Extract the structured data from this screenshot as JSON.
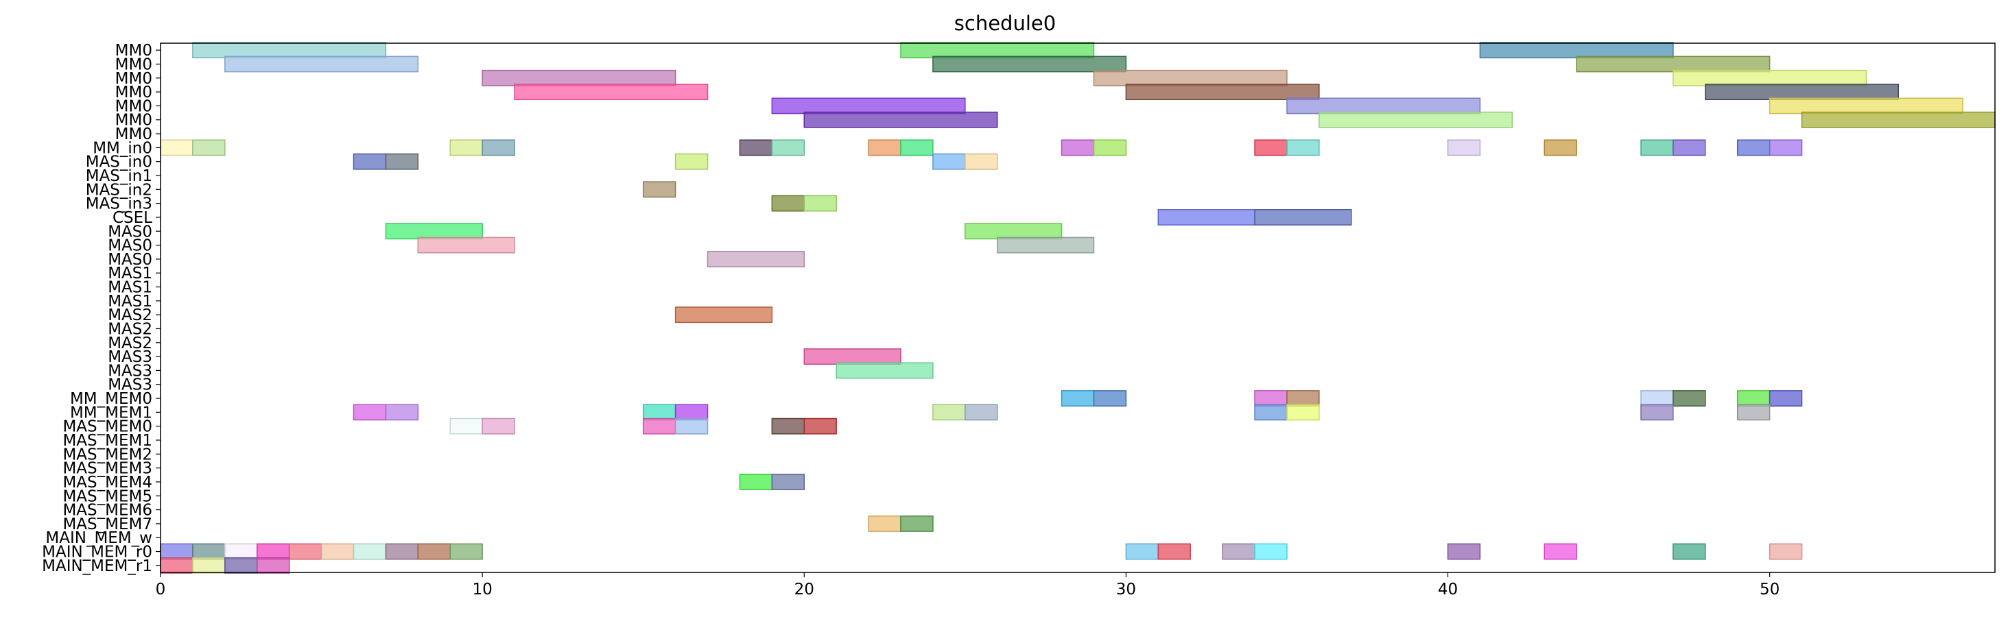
{
  "chart_data": {
    "type": "gantt",
    "title": "schedule0",
    "xlim": [
      0,
      57
    ],
    "xticks": [
      0,
      10,
      20,
      30,
      40,
      50
    ],
    "xlabel": "",
    "ylabel": "",
    "grid": false,
    "rows": [
      "MM0",
      "MM0",
      "MM0",
      "MM0",
      "MM0",
      "MM0",
      "MM0",
      "MM_in0",
      "MAS_in0",
      "MAS_in1",
      "MAS_in2",
      "MAS_in3",
      "CSEL",
      "MAS0",
      "MAS0",
      "MAS0",
      "MAS1",
      "MAS1",
      "MAS1",
      "MAS2",
      "MAS2",
      "MAS2",
      "MAS3",
      "MAS3",
      "MAS3",
      "MM_MEM0",
      "MM_MEM1",
      "MAS_MEM0",
      "MAS_MEM1",
      "MAS_MEM2",
      "MAS_MEM3",
      "MAS_MEM4",
      "MAS_MEM5",
      "MAS_MEM6",
      "MAS_MEM7",
      "MAIN_MEM_w",
      "MAIN_MEM_r0",
      "MAIN_MEM_r1"
    ],
    "bars": [
      {
        "row": 0,
        "start": 1,
        "end": 7,
        "color": "#8fd1d1"
      },
      {
        "row": 0,
        "start": 23,
        "end": 29,
        "color": "#5ce05c"
      },
      {
        "row": 0,
        "start": 41,
        "end": 47,
        "color": "#4a8fb5"
      },
      {
        "row": 1,
        "start": 2,
        "end": 8,
        "color": "#9fbfe6"
      },
      {
        "row": 1,
        "start": 24,
        "end": 30,
        "color": "#3d7a55"
      },
      {
        "row": 1,
        "start": 44,
        "end": 50,
        "color": "#8fa850"
      },
      {
        "row": 2,
        "start": 10,
        "end": 16,
        "color": "#c07ab8"
      },
      {
        "row": 2,
        "start": 29,
        "end": 35,
        "color": "#c9a086"
      },
      {
        "row": 2,
        "start": 47,
        "end": 53,
        "color": "#e0f57a"
      },
      {
        "row": 3,
        "start": 11,
        "end": 17,
        "color": "#ff5aa5"
      },
      {
        "row": 3,
        "start": 30,
        "end": 36,
        "color": "#8b5540"
      },
      {
        "row": 3,
        "start": 48,
        "end": 54,
        "color": "#4a5566"
      },
      {
        "row": 4,
        "start": 19,
        "end": 25,
        "color": "#8a3ee8"
      },
      {
        "row": 4,
        "start": 35,
        "end": 41,
        "color": "#8f8fe0"
      },
      {
        "row": 4,
        "start": 50,
        "end": 56,
        "color": "#ede060"
      },
      {
        "row": 5,
        "start": 20,
        "end": 26,
        "color": "#6a35b5"
      },
      {
        "row": 5,
        "start": 36,
        "end": 42,
        "color": "#b0f08f"
      },
      {
        "row": 5,
        "start": 51,
        "end": 57,
        "color": "#a8b035"
      },
      {
        "row": 7,
        "start": 0,
        "end": 1,
        "color": "#fff5b5"
      },
      {
        "row": 7,
        "start": 1,
        "end": 2,
        "color": "#b5e09a"
      },
      {
        "row": 7,
        "start": 9,
        "end": 10,
        "color": "#d8ee8a"
      },
      {
        "row": 7,
        "start": 10,
        "end": 11,
        "color": "#7aa5b8"
      },
      {
        "row": 7,
        "start": 18,
        "end": 19,
        "color": "#5a4565"
      },
      {
        "row": 7,
        "start": 19,
        "end": 20,
        "color": "#7ad8b0"
      },
      {
        "row": 7,
        "start": 22,
        "end": 23,
        "color": "#ee9a60"
      },
      {
        "row": 7,
        "start": 23,
        "end": 24,
        "color": "#3ae87a"
      },
      {
        "row": 7,
        "start": 28,
        "end": 29,
        "color": "#c860d8"
      },
      {
        "row": 7,
        "start": 29,
        "end": 30,
        "color": "#a0e855"
      },
      {
        "row": 7,
        "start": 34,
        "end": 35,
        "color": "#f0405a"
      },
      {
        "row": 7,
        "start": 35,
        "end": 36,
        "color": "#6ed8d0"
      },
      {
        "row": 7,
        "start": 40,
        "end": 41,
        "color": "#d8c8ee"
      },
      {
        "row": 7,
        "start": 43,
        "end": 44,
        "color": "#c89a40"
      },
      {
        "row": 7,
        "start": 46,
        "end": 47,
        "color": "#55c8a0"
      },
      {
        "row": 7,
        "start": 47,
        "end": 48,
        "color": "#7a60d8"
      },
      {
        "row": 7,
        "start": 49,
        "end": 50,
        "color": "#6070d8"
      },
      {
        "row": 7,
        "start": 50,
        "end": 51,
        "color": "#a070f0"
      },
      {
        "row": 8,
        "start": 6,
        "end": 7,
        "color": "#5a6ec0"
      },
      {
        "row": 8,
        "start": 7,
        "end": 8,
        "color": "#667580"
      },
      {
        "row": 8,
        "start": 16,
        "end": 17,
        "color": "#c8ee75"
      },
      {
        "row": 8,
        "start": 24,
        "end": 25,
        "color": "#75b5f5"
      },
      {
        "row": 8,
        "start": 25,
        "end": 26,
        "color": "#fad8a0"
      },
      {
        "row": 10,
        "start": 15,
        "end": 16,
        "color": "#a89068"
      },
      {
        "row": 11,
        "start": 19,
        "end": 20,
        "color": "#7a8a35"
      },
      {
        "row": 11,
        "start": 20,
        "end": 21,
        "color": "#a8e870"
      },
      {
        "row": 12,
        "start": 31,
        "end": 34,
        "color": "#6e7af0"
      },
      {
        "row": 12,
        "start": 34,
        "end": 37,
        "color": "#5a6ec0"
      },
      {
        "row": 13,
        "start": 7,
        "end": 10,
        "color": "#40f070"
      },
      {
        "row": 13,
        "start": 25,
        "end": 28,
        "color": "#7ae85a"
      },
      {
        "row": 14,
        "start": 8,
        "end": 11,
        "color": "#f0a5b5"
      },
      {
        "row": 14,
        "start": 26,
        "end": 29,
        "color": "#a5b8b0"
      },
      {
        "row": 15,
        "start": 17,
        "end": 20,
        "color": "#c8a5c0"
      },
      {
        "row": 19,
        "start": 16,
        "end": 19,
        "color": "#d0704a"
      },
      {
        "row": 22,
        "start": 20,
        "end": 23,
        "color": "#e85aa5"
      },
      {
        "row": 23,
        "start": 21,
        "end": 24,
        "color": "#7ae8a8"
      },
      {
        "row": 25,
        "start": 28,
        "end": 29,
        "color": "#3ab0e8"
      },
      {
        "row": 25,
        "start": 29,
        "end": 30,
        "color": "#4a80c8"
      },
      {
        "row": 25,
        "start": 34,
        "end": 35,
        "color": "#d860d8"
      },
      {
        "row": 25,
        "start": 35,
        "end": 36,
        "color": "#b07a55"
      },
      {
        "row": 25,
        "start": 46,
        "end": 47,
        "color": "#b8d0f5"
      },
      {
        "row": 25,
        "start": 47,
        "end": 48,
        "color": "#4a6e40"
      },
      {
        "row": 25,
        "start": 49,
        "end": 50,
        "color": "#5ae840"
      },
      {
        "row": 25,
        "start": 50,
        "end": 51,
        "color": "#5a5ad0"
      },
      {
        "row": 26,
        "start": 6,
        "end": 7,
        "color": "#d860e8"
      },
      {
        "row": 26,
        "start": 7,
        "end": 8,
        "color": "#b880e8"
      },
      {
        "row": 26,
        "start": 15,
        "end": 16,
        "color": "#40e0c0"
      },
      {
        "row": 26,
        "start": 16,
        "end": 17,
        "color": "#b040f0"
      },
      {
        "row": 26,
        "start": 24,
        "end": 25,
        "color": "#c0e890"
      },
      {
        "row": 26,
        "start": 25,
        "end": 26,
        "color": "#a0b0c5"
      },
      {
        "row": 26,
        "start": 34,
        "end": 35,
        "color": "#6a9ae0"
      },
      {
        "row": 26,
        "start": 35,
        "end": 36,
        "color": "#e8ff70"
      },
      {
        "row": 26,
        "start": 46,
        "end": 47,
        "color": "#9080c0"
      },
      {
        "row": 26,
        "start": 49,
        "end": 50,
        "color": "#a5a8b0"
      },
      {
        "row": 27,
        "start": 9,
        "end": 10,
        "color": "#eefafa"
      },
      {
        "row": 27,
        "start": 10,
        "end": 11,
        "color": "#e8a5d0"
      },
      {
        "row": 27,
        "start": 15,
        "end": 16,
        "color": "#f060c0"
      },
      {
        "row": 27,
        "start": 16,
        "end": 17,
        "color": "#a0c0f0"
      },
      {
        "row": 27,
        "start": 19,
        "end": 20,
        "color": "#6a4a45"
      },
      {
        "row": 27,
        "start": 20,
        "end": 21,
        "color": "#c03535"
      },
      {
        "row": 31,
        "start": 18,
        "end": 19,
        "color": "#40f040"
      },
      {
        "row": 31,
        "start": 19,
        "end": 20,
        "color": "#6a78a8"
      },
      {
        "row": 34,
        "start": 22,
        "end": 23,
        "color": "#eebe70"
      },
      {
        "row": 34,
        "start": 23,
        "end": 24,
        "color": "#5aa050"
      },
      {
        "row": 36,
        "start": 0,
        "end": 1,
        "color": "#7a7aea"
      },
      {
        "row": 36,
        "start": 1,
        "end": 2,
        "color": "#6a9090"
      },
      {
        "row": 36,
        "start": 2,
        "end": 3,
        "color": "#f5eeff"
      },
      {
        "row": 36,
        "start": 3,
        "end": 4,
        "color": "#f040c0"
      },
      {
        "row": 36,
        "start": 4,
        "end": 5,
        "color": "#f07080"
      },
      {
        "row": 36,
        "start": 5,
        "end": 6,
        "color": "#f5c8a5"
      },
      {
        "row": 36,
        "start": 6,
        "end": 7,
        "color": "#c5f0e0"
      },
      {
        "row": 36,
        "start": 7,
        "end": 8,
        "color": "#9a7a95"
      },
      {
        "row": 36,
        "start": 8,
        "end": 9,
        "color": "#b07050"
      },
      {
        "row": 36,
        "start": 9,
        "end": 10,
        "color": "#80b070"
      },
      {
        "row": 36,
        "start": 30,
        "end": 31,
        "color": "#70c8f0"
      },
      {
        "row": 36,
        "start": 31,
        "end": 32,
        "color": "#e84a5a"
      },
      {
        "row": 36,
        "start": 33,
        "end": 34,
        "color": "#a590b8"
      },
      {
        "row": 36,
        "start": 34,
        "end": 35,
        "color": "#60f0ff"
      },
      {
        "row": 36,
        "start": 40,
        "end": 41,
        "color": "#9060b0"
      },
      {
        "row": 36,
        "start": 43,
        "end": 44,
        "color": "#f050e0"
      },
      {
        "row": 36,
        "start": 47,
        "end": 48,
        "color": "#40a888"
      },
      {
        "row": 36,
        "start": 50,
        "end": 51,
        "color": "#f0a8a0"
      },
      {
        "row": 37,
        "start": 0,
        "end": 1,
        "color": "#f05a7a"
      },
      {
        "row": 37,
        "start": 1,
        "end": 2,
        "color": "#e8f09a"
      },
      {
        "row": 37,
        "start": 2,
        "end": 3,
        "color": "#7060a8"
      },
      {
        "row": 37,
        "start": 3,
        "end": 4,
        "color": "#d850b8"
      }
    ]
  }
}
